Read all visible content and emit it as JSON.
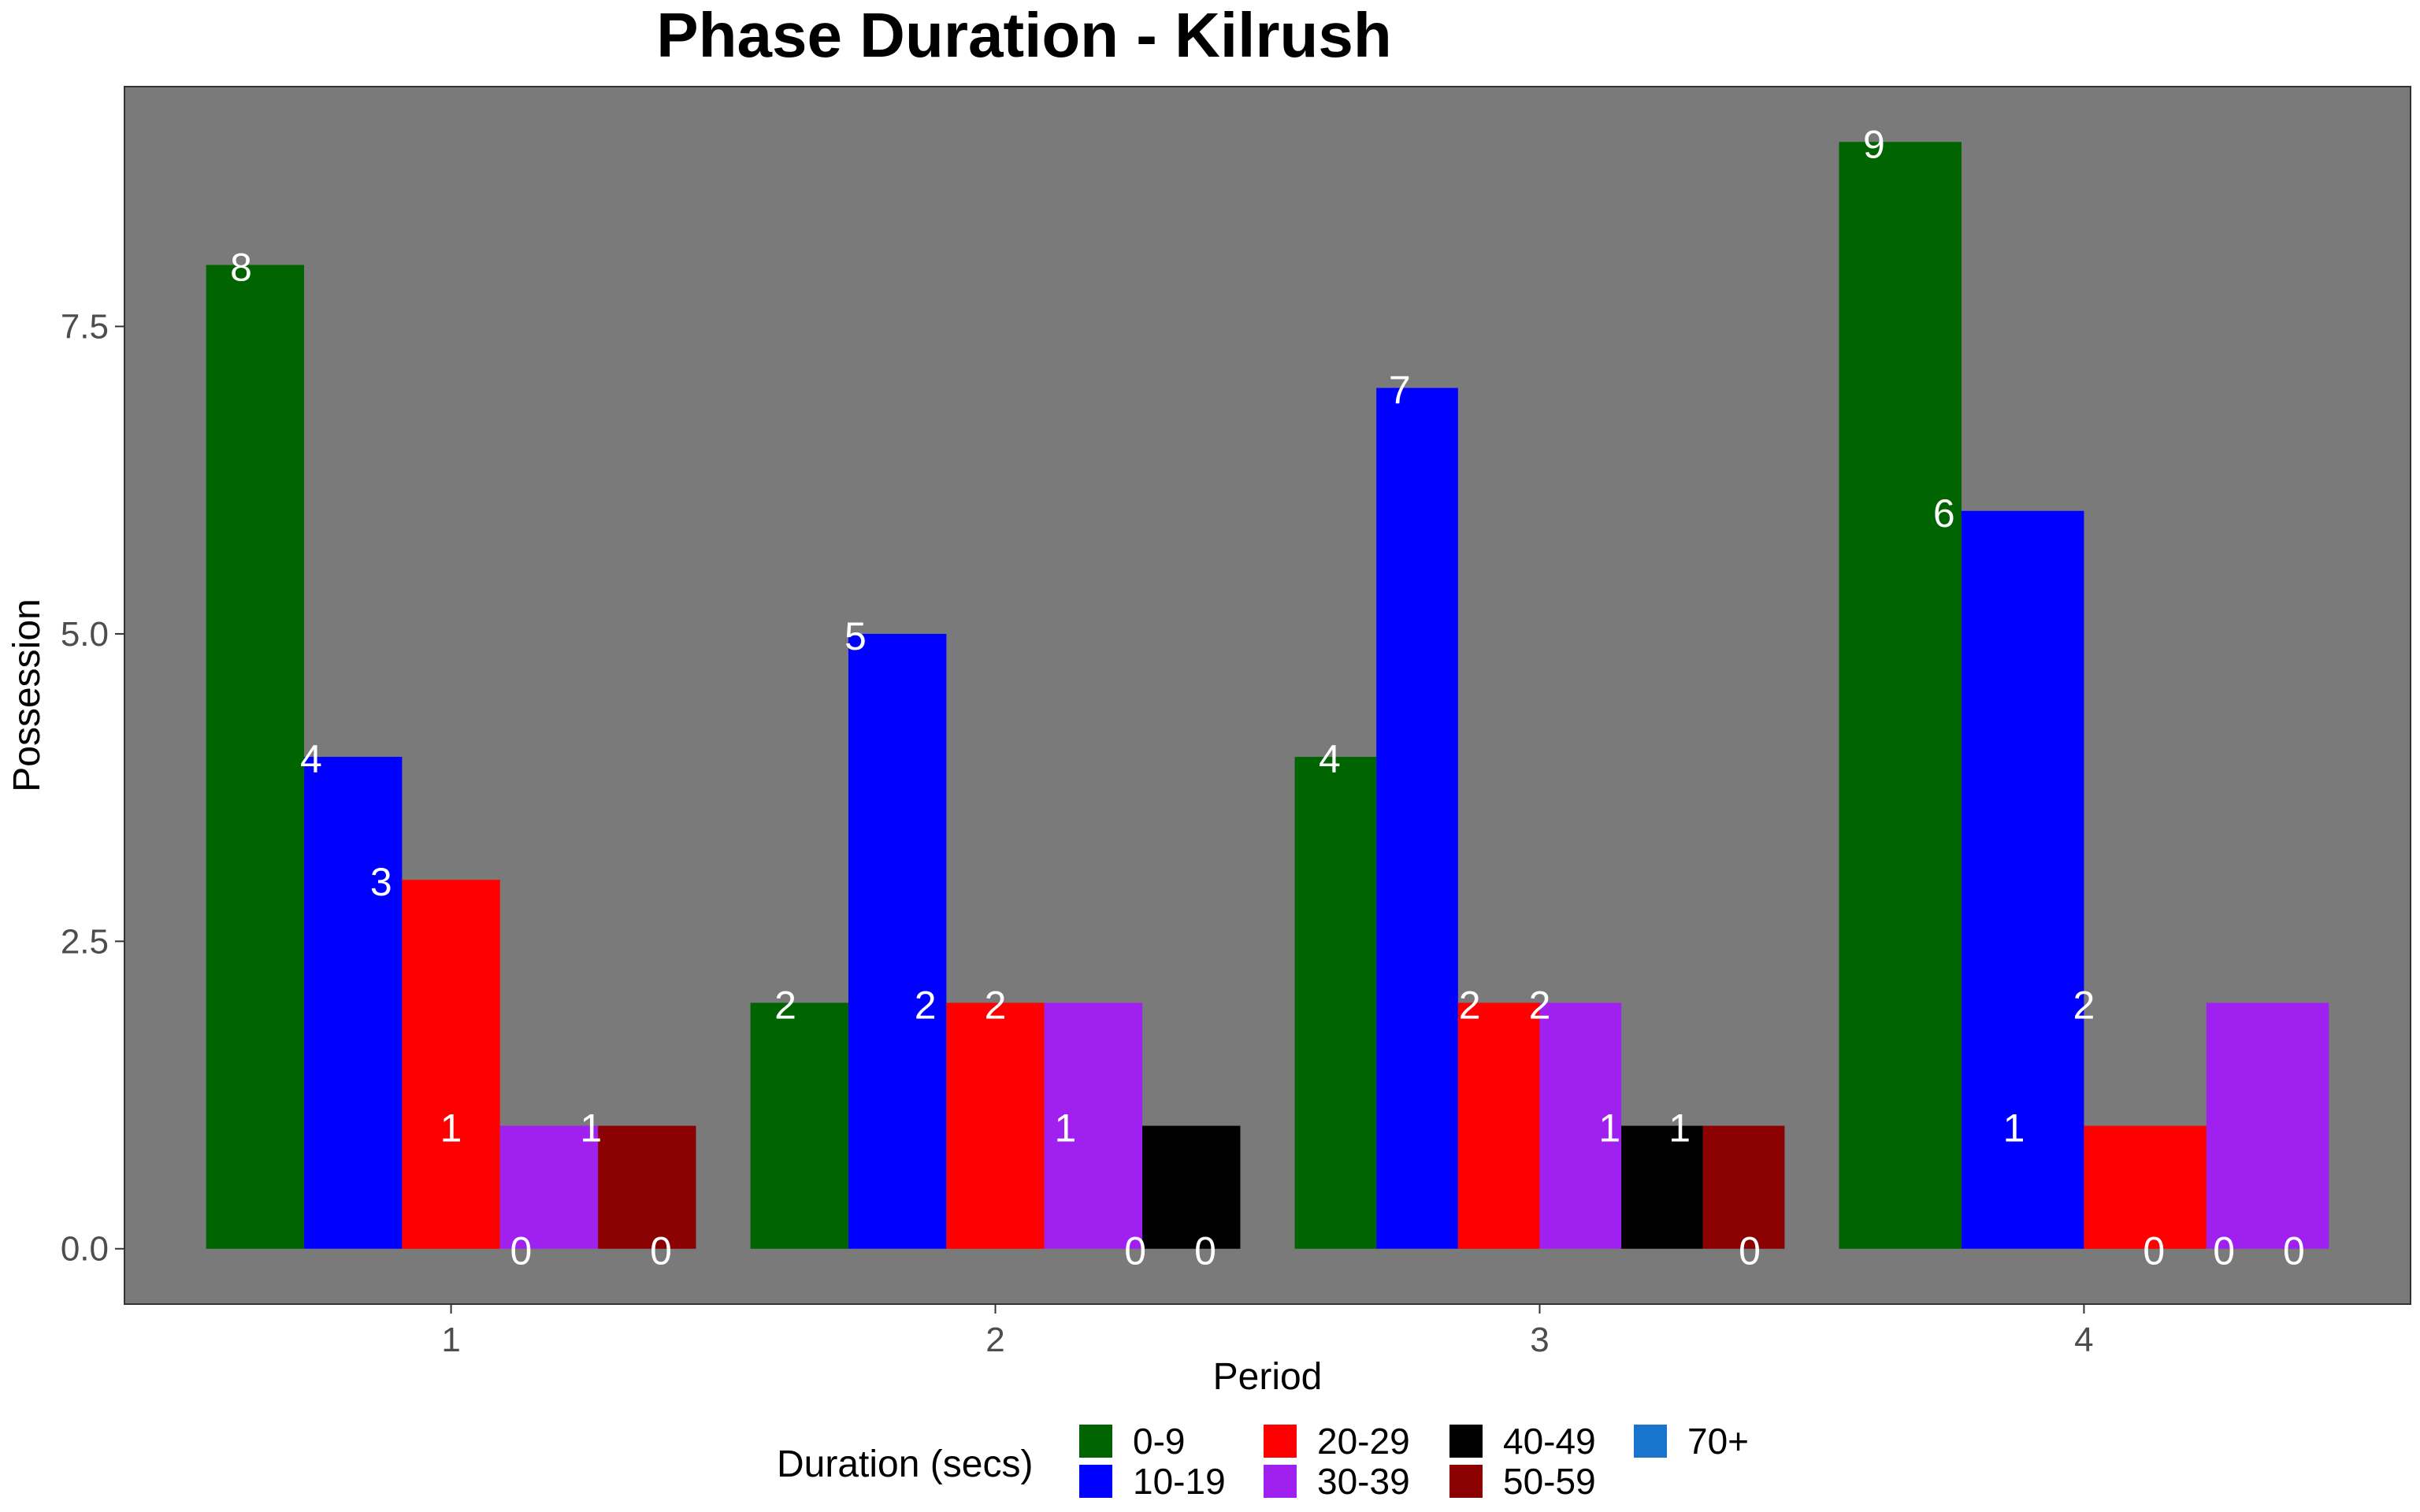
{
  "chart_data": {
    "type": "bar",
    "title": "Phase Duration - Kilrush",
    "xlabel": "Period",
    "ylabel": "Possession",
    "categories": [
      "1",
      "2",
      "3",
      "4"
    ],
    "yticks": [
      "0.0",
      "2.5",
      "5.0",
      "7.5"
    ],
    "ylim": [
      -0.45,
      9.45
    ],
    "grid": false,
    "legend": {
      "title": "Duration (secs)",
      "position": "bottom"
    },
    "series": [
      {
        "name": "0-9",
        "color": "#006400",
        "values": [
          8,
          2,
          4,
          9
        ]
      },
      {
        "name": "10-19",
        "color": "#0000FF",
        "values": [
          4,
          5,
          7,
          6
        ]
      },
      {
        "name": "20-29",
        "color": "#FF0000",
        "values": [
          3,
          2,
          2,
          1
        ]
      },
      {
        "name": "30-39",
        "color": "#A020F0",
        "values": [
          1,
          2,
          2,
          2
        ]
      },
      {
        "name": "40-49",
        "color": "#000000",
        "values": [
          0,
          1,
          1,
          0
        ]
      },
      {
        "name": "50-59",
        "color": "#8B0000",
        "values": [
          1,
          0,
          1,
          0
        ]
      },
      {
        "name": "70+",
        "color": "#1874CD",
        "values": [
          0,
          0,
          0,
          0
        ]
      }
    ],
    "panel_background": "#7A7A7A",
    "data_label_color": "#FFFFFF"
  }
}
